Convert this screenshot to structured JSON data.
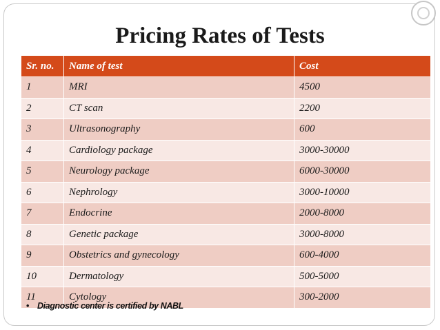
{
  "title": "Pricing Rates of Tests",
  "table": {
    "headers": {
      "sr": "Sr. no.",
      "name": "Name of test",
      "cost": "Cost"
    },
    "rows": [
      {
        "sr": "1",
        "name": "MRI",
        "cost": "4500"
      },
      {
        "sr": "2",
        "name": "CT scan",
        "cost": "2200"
      },
      {
        "sr": "3",
        "name": "Ultrasonography",
        "cost": "600"
      },
      {
        "sr": "4",
        "name": "Cardiology package",
        "cost": "3000-30000"
      },
      {
        "sr": "5",
        "name": "Neurology  package",
        "cost": "6000-30000"
      },
      {
        "sr": "6",
        "name": "Nephrology",
        "cost": "3000-10000"
      },
      {
        "sr": "7",
        "name": "Endocrine",
        "cost": "2000-8000"
      },
      {
        "sr": "8",
        "name": "Genetic package",
        "cost": "3000-8000"
      },
      {
        "sr": "9",
        "name": "Obstetrics and gynecology",
        "cost": "600-4000"
      },
      {
        "sr": "10",
        "name": "Dermatology",
        "cost": "500-5000"
      },
      {
        "sr": "11",
        "name": "Cytology",
        "cost": "300-2000"
      }
    ]
  },
  "note": {
    "bullet": "•",
    "text": "Diagnostic center is certified by NABL"
  },
  "colors": {
    "header_bg": "#d44a1a",
    "row_odd": "#efcdc4",
    "row_even": "#f8e8e4"
  }
}
